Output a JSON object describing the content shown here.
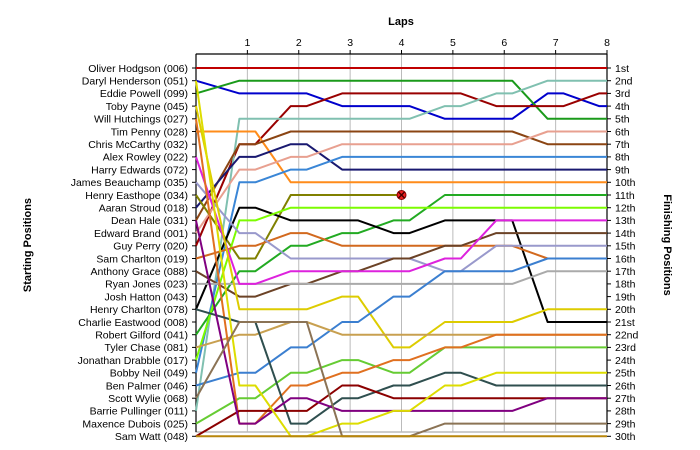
{
  "chart_data": {
    "type": "line",
    "title": "",
    "xlabel": "Laps",
    "ylabel": "Starting Positions",
    "y2label": "Finishing Positions",
    "x": [
      0,
      1,
      2,
      3,
      4,
      5,
      6,
      7,
      8
    ],
    "x_tick_labels": [
      "1",
      "2",
      "3",
      "4",
      "5",
      "6",
      "7",
      "8"
    ],
    "ylim": [
      1,
      30
    ],
    "y_inverted": true,
    "grid": true,
    "starting_labels": [
      "Oliver Hodgson (006)",
      "Daryl Henderson (051)",
      "Eddie Powell (099)",
      "Toby Payne (045)",
      "Will Hutchings (027)",
      "Tim Penny (028)",
      "Chris McCarthy (032)",
      "Alex Rowley (022)",
      "Harry Edwards (072)",
      "James Beauchamp (035)",
      "Henry Easthope (034)",
      "Aaran Stroud (018)",
      "Dean Hale (031)",
      "Edward Brand (001)",
      "Guy Perry (020)",
      "Sam Charlton (019)",
      "Anthony Grace (088)",
      "Ryan Jones (023)",
      "Josh Hatton (043)",
      "Henry Charlton (078)",
      "Charlie Eastwood (008)",
      "Robert Gilford (041)",
      "Tyler Chase (081)",
      "Jonathan Drabble (017)",
      "Bobby Neil (049)",
      "Ben Palmer (046)",
      "Scott Wylie (068)",
      "Barrie Pullinger (011)",
      "Maxence Dubois (025)",
      "Sam Watt (048)"
    ],
    "finishing_labels": [
      "1st",
      "2nd",
      "3rd",
      "4th",
      "5th",
      "6th",
      "7th",
      "8th",
      "9th",
      "10th",
      "11th",
      "12th",
      "13th",
      "14th",
      "15th",
      "16th",
      "17th",
      "18th",
      "19th",
      "20th",
      "21st",
      "22nd",
      "23rd",
      "24th",
      "25th",
      "26th",
      "27th",
      "28th",
      "29th",
      "30th"
    ],
    "series": [
      {
        "name": "Oliver Hodgson (006)",
        "color": "#c00000",
        "values": [
          1,
          1,
          1,
          1,
          1,
          1,
          1,
          1,
          1
        ]
      },
      {
        "name": "Daryl Henderson (051)",
        "color": "#0000cc",
        "values": [
          2,
          3,
          3,
          4,
          4,
          5,
          5,
          3,
          4
        ]
      },
      {
        "name": "Eddie Powell (099)",
        "color": "#1a9a1a",
        "values": [
          3,
          2,
          2,
          2,
          2,
          2,
          2,
          5,
          5
        ]
      },
      {
        "name": "Toby Payne (045)",
        "color": "#990000",
        "values": [
          15,
          7,
          4,
          3,
          3,
          3,
          4,
          4,
          3
        ]
      },
      {
        "name": "Will Hutchings (027)",
        "color": "#80c0b0",
        "values": [
          28,
          5,
          5,
          5,
          5,
          4,
          3,
          2,
          2
        ]
      },
      {
        "name": "Tim Penny (028)",
        "color": "#ff8c1a",
        "values": [
          6,
          6,
          10,
          10,
          10,
          10,
          10,
          10,
          10
        ]
      },
      {
        "name": "Chris McCarthy (032)",
        "color": "#8b4513",
        "values": [
          13,
          7,
          6,
          6,
          6,
          6,
          6,
          7,
          7
        ]
      },
      {
        "name": "Alex Rowley (022)",
        "color": "#191970",
        "values": [
          12,
          8,
          7,
          9,
          9,
          9,
          9,
          9,
          9
        ]
      },
      {
        "name": "Harry Edwards (072)",
        "color": "#3a86d6",
        "values": [
          25,
          10,
          9,
          8,
          8,
          8,
          8,
          8,
          8
        ]
      },
      {
        "name": "James Beauchamp (035)",
        "color": "#e8a090",
        "values": [
          14,
          9,
          8,
          7,
          7,
          7,
          7,
          6,
          6
        ]
      },
      {
        "name": "Henry Easthope (034)",
        "color": "#808000",
        "values": [
          11,
          16,
          11,
          11,
          11,
          null,
          null,
          null,
          null
        ]
      },
      {
        "name": "Aaran Stroud (018)",
        "color": "#22aa22",
        "values": [
          22,
          17,
          15,
          14,
          13,
          11,
          11,
          11,
          11
        ]
      },
      {
        "name": "Dean Hale (031)",
        "color": "#000000",
        "values": [
          20,
          12,
          13,
          13,
          14,
          13,
          13,
          21,
          21
        ]
      },
      {
        "name": "Edward Brand (001)",
        "color": "#7cfc00",
        "values": [
          24,
          13,
          12,
          12,
          12,
          12,
          12,
          12,
          12
        ]
      },
      {
        "name": "Guy Perry (020)",
        "color": "#d2691e",
        "values": [
          16,
          15,
          14,
          15,
          15,
          15,
          15,
          16,
          16
        ]
      },
      {
        "name": "Sam Charlton (019)",
        "color": "#9999cc",
        "values": [
          10,
          14,
          16,
          16,
          16,
          17,
          15,
          15,
          15
        ]
      },
      {
        "name": "Anthony Grace (088)",
        "color": "#6b4226",
        "values": [
          17,
          19,
          18,
          17,
          16,
          15,
          14,
          14,
          14
        ]
      },
      {
        "name": "Ryan Jones (023)",
        "color": "#aaaaaa",
        "values": [
          18,
          18,
          18,
          18,
          18,
          18,
          18,
          17,
          17
        ]
      },
      {
        "name": "Josh Hatton (043)",
        "color": "#dd22dd",
        "values": [
          8,
          18,
          17,
          17,
          17,
          16,
          13,
          13,
          13
        ]
      },
      {
        "name": "Henry Charlton (078)",
        "color": "#ddcc00",
        "values": [
          4,
          20,
          20,
          19,
          23,
          21,
          21,
          20,
          20
        ]
      },
      {
        "name": "Charlie Eastwood (008)",
        "color": "#3b7fd0",
        "values": [
          26,
          25,
          23,
          21,
          19,
          17,
          17,
          16,
          16
        ]
      },
      {
        "name": "Robert Gilford (041)",
        "color": "#c8a050",
        "values": [
          23,
          22,
          21,
          22,
          22,
          22,
          22,
          22,
          22
        ]
      },
      {
        "name": "Tyler Chase (081)",
        "color": "#66cc33",
        "values": [
          29,
          27,
          25,
          24,
          25,
          23,
          23,
          23,
          23
        ]
      },
      {
        "name": "Jonathan Drabble (017)",
        "color": "#e07020",
        "values": [
          5,
          29,
          26,
          25,
          24,
          23,
          22,
          22,
          22
        ]
      },
      {
        "name": "Bobby Neil (049)",
        "color": "#2f4f4f",
        "values": [
          20,
          21,
          29,
          27,
          26,
          25,
          26,
          26,
          26
        ]
      },
      {
        "name": "Ben Palmer (046)",
        "color": "#8b0000",
        "values": [
          30,
          28,
          28,
          26,
          27,
          27,
          27,
          27,
          27
        ]
      },
      {
        "name": "Scott Wylie (068)",
        "color": "#800080",
        "values": [
          13,
          29,
          27,
          28,
          28,
          28,
          28,
          27,
          27
        ]
      },
      {
        "name": "Barrie Pullinger (011)",
        "color": "#dddd00",
        "values": [
          2,
          26,
          30,
          29,
          28,
          26,
          25,
          25,
          25
        ]
      },
      {
        "name": "Maxence Dubois (025)",
        "color": "#8b7355",
        "values": [
          27,
          21,
          21,
          30,
          30,
          29,
          29,
          29,
          29
        ]
      },
      {
        "name": "Sam Watt (048)",
        "color": "#b8860b",
        "values": [
          30,
          30,
          30,
          30,
          30,
          30,
          30,
          30,
          30
        ]
      }
    ],
    "markers": [
      {
        "x": 4,
        "y": 11,
        "symbol": "x",
        "color": "#cc0000"
      }
    ]
  }
}
